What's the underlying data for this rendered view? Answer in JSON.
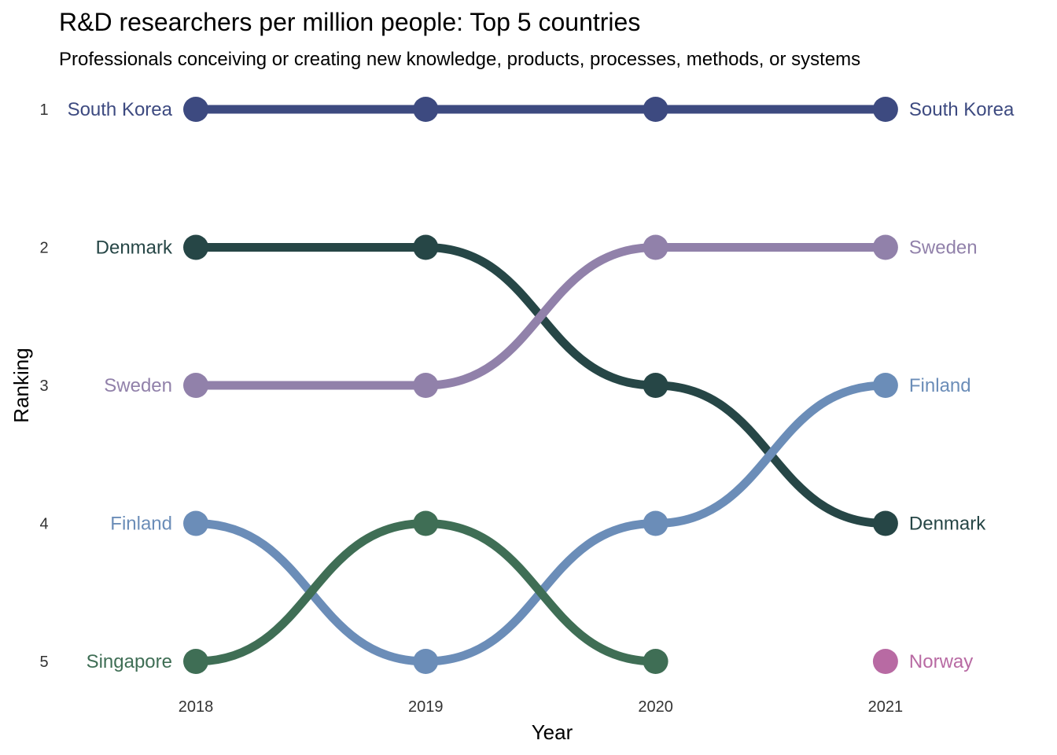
{
  "chart_data": {
    "type": "line",
    "subtype": "bump",
    "title": "R&D researchers per million people: Top 5 countries",
    "subtitle": "Professionals conceiving or creating new knowledge, products, processes, methods, or systems",
    "xlabel": "Year",
    "ylabel": "Ranking",
    "x": [
      2018,
      2019,
      2020,
      2021
    ],
    "y_ticks": [
      1,
      2,
      3,
      4,
      5
    ],
    "ylim": [
      1,
      5
    ],
    "y_reversed": true,
    "grid": false,
    "series": [
      {
        "name": "South Korea",
        "color": "#3d4a80",
        "values": [
          1,
          1,
          1,
          1
        ]
      },
      {
        "name": "Denmark",
        "color": "#264646",
        "values": [
          2,
          2,
          3,
          4
        ]
      },
      {
        "name": "Sweden",
        "color": "#9181aa",
        "values": [
          3,
          3,
          2,
          2
        ]
      },
      {
        "name": "Finland",
        "color": "#6b8db8",
        "values": [
          4,
          5,
          4,
          3
        ]
      },
      {
        "name": "Singapore",
        "color": "#3f6e55",
        "values": [
          5,
          4,
          5,
          null
        ]
      },
      {
        "name": "Norway",
        "color": "#b86aa3",
        "values": [
          null,
          null,
          null,
          5
        ]
      }
    ]
  }
}
